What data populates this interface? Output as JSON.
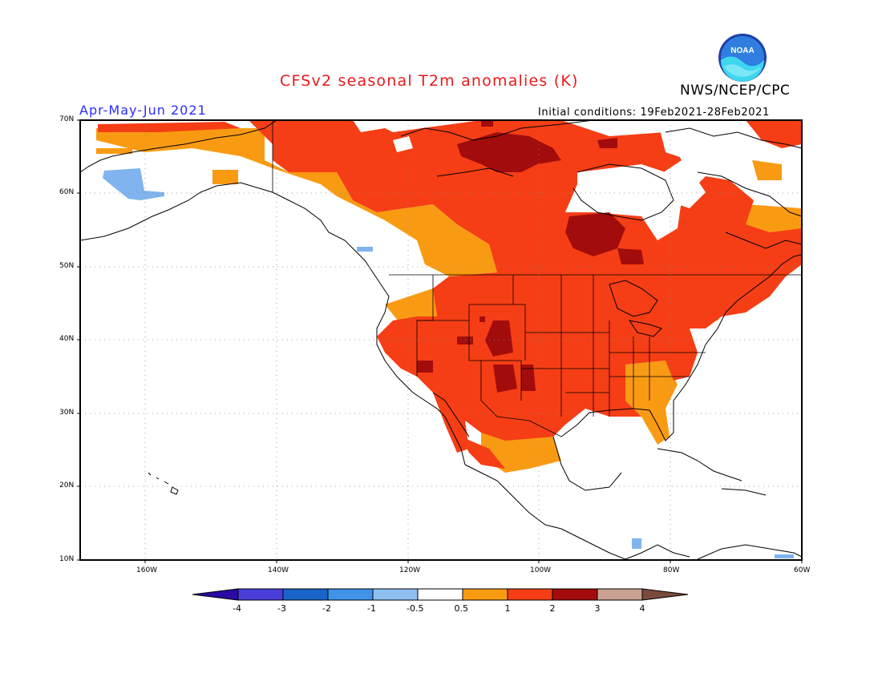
{
  "title": "CFSv2 seasonal T2m anomalies (K)",
  "agency": "NWS/NCEP/CPC",
  "period": "Apr-May-Jun 2021",
  "initial_conditions": "Initial conditions: 19Feb2021-28Feb2021",
  "logo_text": "NOAA",
  "latitude_labels": [
    "70N",
    "60N",
    "50N",
    "40N",
    "30N",
    "20N",
    "10N"
  ],
  "longitude_labels": [
    "160W",
    "140W",
    "120W",
    "100W",
    "80W",
    "60W"
  ],
  "colorbar": {
    "labels": [
      "-4",
      "-3",
      "-2",
      "-1",
      "-0.5",
      "0.5",
      "1",
      "2",
      "3",
      "4"
    ],
    "colors": [
      "#2a0aa3",
      "#4a3ed8",
      "#1a64c9",
      "#3f93e8",
      "#8fc0f2",
      "#ffffff",
      "#f99b12",
      "#f53e15",
      "#a30c0c",
      "#c9a294",
      "#7a4b3c"
    ]
  },
  "colors": {
    "title": "#e8191c",
    "period": "#2b2bff",
    "anomaly_0_5_to_1": "#f99b12",
    "anomaly_1_to_2": "#f53e15",
    "anomaly_2_to_3": "#a30c0c",
    "anomaly_neg": "#7fb4ee"
  }
}
